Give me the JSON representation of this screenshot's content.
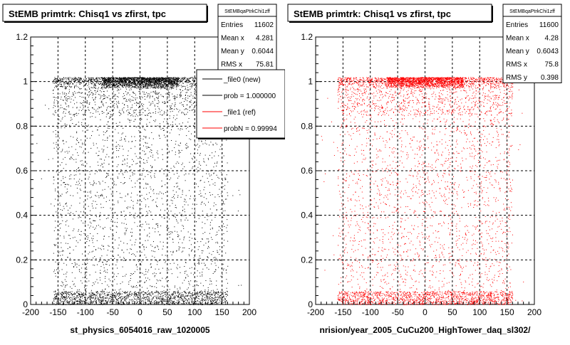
{
  "footer": "",
  "chart_data": [
    {
      "type": "scatter",
      "title": "StEMB primtrk: Chisq1 vs zfirst, tpc",
      "xlabel": "st_physics_6054016_raw_1020005",
      "ylabel": "",
      "xlim": [
        -200,
        200
      ],
      "ylim": [
        0,
        1.2
      ],
      "x_ticks": [
        "-200",
        "-150",
        "-100",
        "-50",
        "0",
        "50",
        "100",
        "150",
        "200"
      ],
      "y_ticks": [
        "0",
        "0.2",
        "0.4",
        "0.6",
        "0.8",
        "1",
        "1.2"
      ],
      "grid": true,
      "point_color": "#000000",
      "distribution": {
        "x_range": [
          -160,
          160
        ],
        "top_band_y": [
          0.97,
          1.02
        ],
        "bottom_band_y": [
          0.0,
          0.06
        ],
        "top_band_peak_x": [
          -50,
          50
        ]
      },
      "stats": {
        "title": "StEMBqaPtrkChi1zff",
        "rows": [
          {
            "label": "Entries",
            "value": "11602"
          },
          {
            "label": "Mean x",
            "value": "4.281"
          },
          {
            "label": "Mean y",
            "value": "0.6044"
          },
          {
            "label": "RMS x",
            "value": "75.81"
          }
        ]
      },
      "legend": {
        "placement": "top-right",
        "entries": [
          {
            "label": "_file0 (new)",
            "color": "#000000"
          },
          {
            "label": "prob = 1.000000",
            "color": "#000000"
          },
          {
            "label": "_file1 (ref)",
            "color": "#ff0000"
          },
          {
            "label": "probN = 0.99994",
            "color": "#ff0000"
          }
        ]
      }
    },
    {
      "type": "scatter",
      "title": "StEMB primtrk: Chisq1 vs zfirst, tpc",
      "xlabel": "nrision/year_2005_CuCu200_HighTower_daq_sl302/",
      "ylabel": "",
      "xlim": [
        -200,
        200
      ],
      "ylim": [
        0,
        1.2
      ],
      "x_ticks": [
        "-200",
        "-150",
        "-100",
        "-50",
        "0",
        "50",
        "100",
        "150",
        "200"
      ],
      "y_ticks": [
        "0",
        "0.2",
        "0.4",
        "0.6",
        "0.8",
        "1",
        "1.2"
      ],
      "grid": true,
      "point_color": "#ff0000",
      "distribution": {
        "x_range": [
          -160,
          160
        ],
        "top_band_y": [
          0.97,
          1.02
        ],
        "bottom_band_y": [
          0.0,
          0.06
        ],
        "top_band_peak_x": [
          -50,
          50
        ]
      },
      "stats": {
        "title": "StEMBqaPtrkChi1zff",
        "rows": [
          {
            "label": "Entries",
            "value": "11600"
          },
          {
            "label": "Mean x",
            "value": "4.28"
          },
          {
            "label": "Mean y",
            "value": "0.6043"
          },
          {
            "label": "RMS x",
            "value": "75.8"
          },
          {
            "label": "RMS y",
            "value": "0.398"
          }
        ]
      },
      "legend": null
    }
  ]
}
